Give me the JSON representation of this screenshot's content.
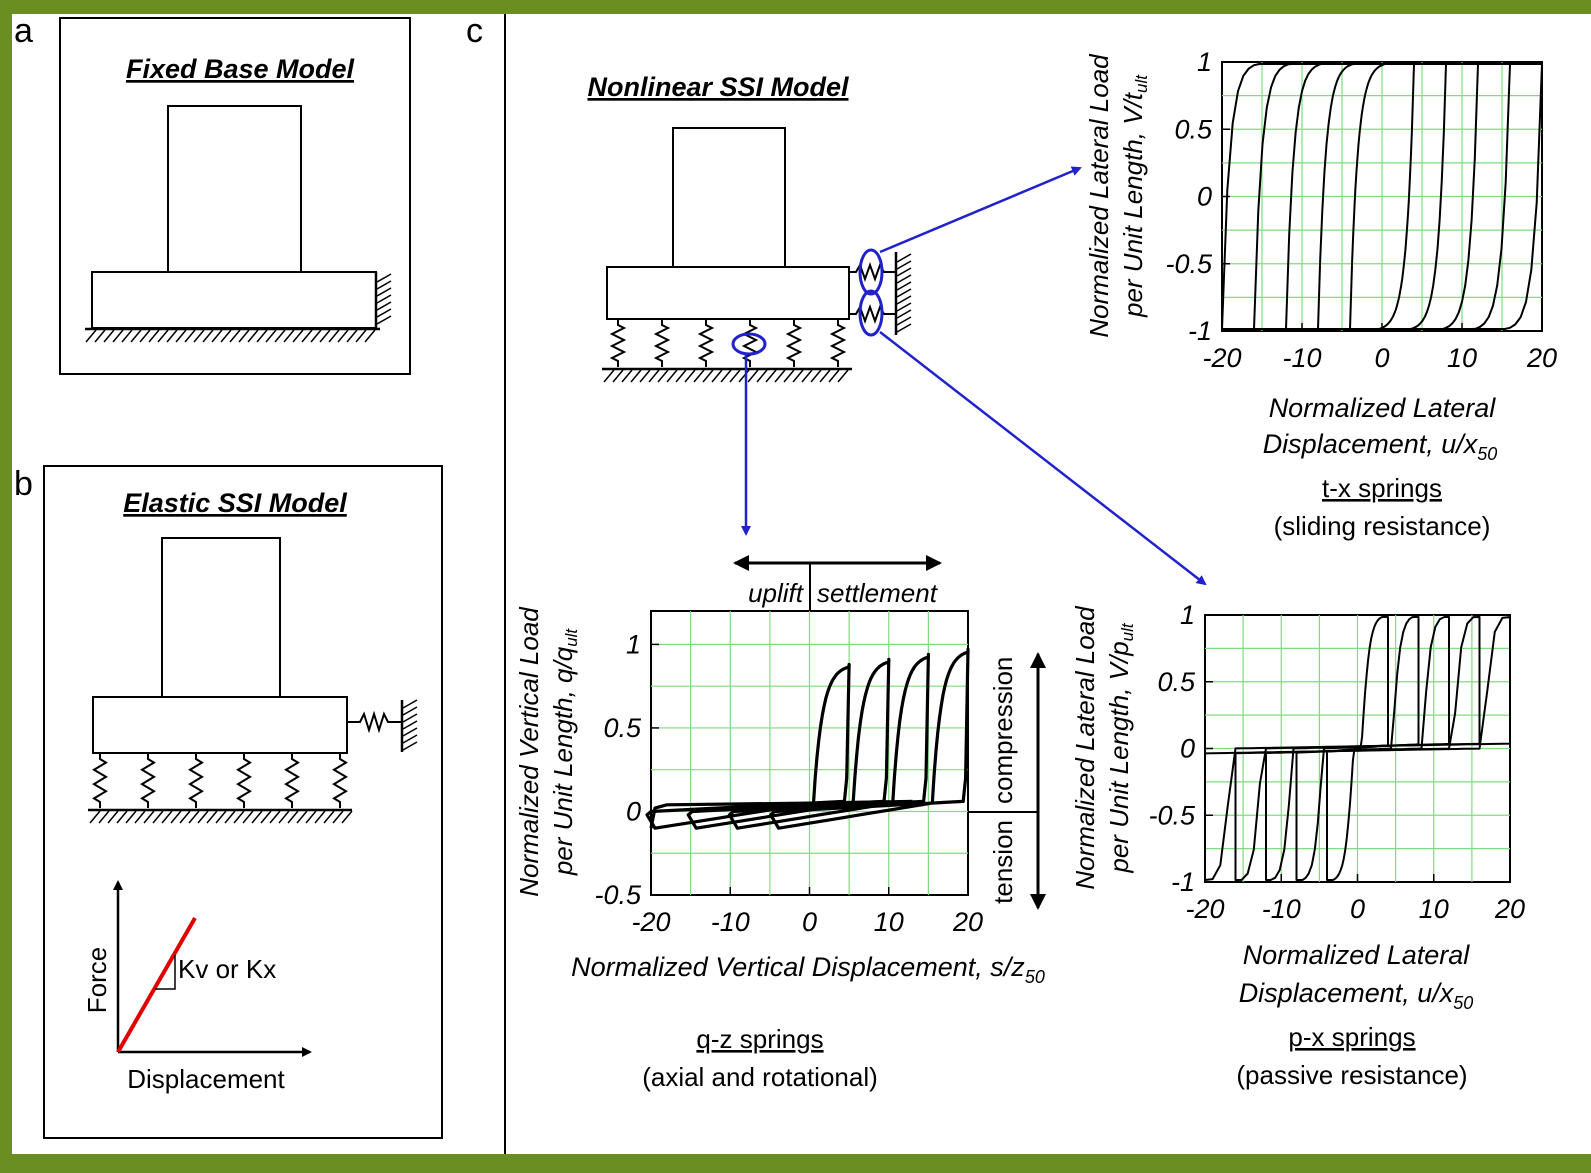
{
  "panels": {
    "a": {
      "letter": "a",
      "title": "Fixed Base Model"
    },
    "b": {
      "letter": "b",
      "title": "Elastic SSI Model",
      "force_label": "Force",
      "disp_label": "Displacement",
      "stiffness_label": "Kv or Kx"
    },
    "c": {
      "letter": "c",
      "title": "Nonlinear SSI Model"
    }
  },
  "uplift_label": "uplift",
  "settlement_label": "settlement",
  "tension_label": "tension",
  "compression_label": "compression",
  "charts": {
    "tx": {
      "ylabel_1": "Normalized Lateral Load",
      "ylabel_2": "per Unit Length, V/t",
      "ylabel_sub": "ult",
      "xlabel_1": "Normalized Lateral",
      "xlabel_2": "Displacement, u/x",
      "xlabel_sub": "50",
      "caption_1": "t-x springs",
      "caption_2": "(sliding resistance)",
      "xticks": [
        "-20",
        "-10",
        "0",
        "10",
        "20"
      ],
      "yticks": [
        "1",
        "0.5",
        "0",
        "-0.5",
        "-1"
      ]
    },
    "qz": {
      "ylabel_1": "Normalized Vertical Load",
      "ylabel_2": "per Unit Length, q/q",
      "ylabel_sub": "ult",
      "xlabel_1": "Normalized Vertical Displacement, s/z",
      "xlabel_sub": "50",
      "caption_1": "q-z springs",
      "caption_2": "(axial and rotational)",
      "xticks": [
        "-20",
        "-10",
        "0",
        "10",
        "20"
      ],
      "yticks": [
        "1",
        "0.5",
        "0",
        "-0.5"
      ]
    },
    "px": {
      "ylabel_1": "Normalized Lateral Load",
      "ylabel_2": "per Unit Length, V/p",
      "ylabel_sub": "ult",
      "xlabel_1": "Normalized Lateral",
      "xlabel_2": "Displacement, u/x",
      "xlabel_sub": "50",
      "caption_1": "p-x springs",
      "caption_2": "(passive resistance)",
      "xticks": [
        "-20",
        "-10",
        "0",
        "10",
        "20"
      ],
      "yticks": [
        "1",
        "0.5",
        "0",
        "-0.5",
        "-1"
      ]
    }
  },
  "chart_data": [
    {
      "type": "line",
      "name_key": "tx",
      "xlim": [
        -20,
        20
      ],
      "ylim": [
        -1,
        1
      ],
      "grid": true,
      "amplitudes": [
        4,
        8,
        12,
        16,
        20
      ]
    },
    {
      "type": "line",
      "name_key": "qz",
      "xlim": [
        -20,
        20
      ],
      "ylim": [
        -0.5,
        1.2
      ],
      "grid": true,
      "amplitudes": [
        5,
        10,
        15,
        20
      ]
    },
    {
      "type": "line",
      "name_key": "px",
      "xlim": [
        -20,
        20
      ],
      "ylim": [
        -1,
        1
      ],
      "grid": true,
      "amplitudes": [
        4,
        8,
        12,
        16,
        20
      ]
    }
  ],
  "colors": {
    "frame": "#6b8e23",
    "arrow": "#2222cc",
    "grid": "#7fdc7f",
    "stiffness": "#e00000"
  }
}
